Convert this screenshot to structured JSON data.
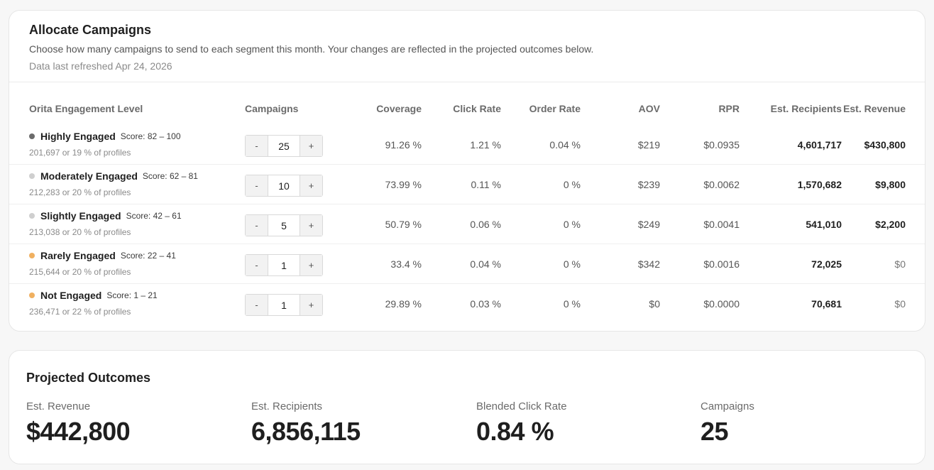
{
  "allocate": {
    "title": "Allocate Campaigns",
    "description": "Choose how many campaigns to send to each segment this month. Your changes are reflected in the projected outcomes below.",
    "refreshed": "Data last refreshed Apr 24, 2026",
    "columns": {
      "level": "Orita Engagement Level",
      "campaigns": "Campaigns",
      "coverage": "Coverage",
      "click_rate": "Click Rate",
      "order_rate": "Order Rate",
      "aov": "AOV",
      "rpr": "RPR",
      "recipients": "Est. Recipients",
      "revenue": "Est. Revenue"
    },
    "rows": [
      {
        "name": "Highly Engaged",
        "score": "Score: 82 – 100",
        "profiles": "201,697 or 19 % of profiles",
        "dot_color": "#6b6b6b",
        "campaigns": "25",
        "coverage": "91.26 %",
        "click_rate": "1.21 %",
        "order_rate": "0.04 %",
        "aov": "$219",
        "rpr": "$0.0935",
        "recipients": "4,601,717",
        "revenue": "$430,800"
      },
      {
        "name": "Moderately Engaged",
        "score": "Score: 62 – 81",
        "profiles": "212,283 or 20 % of profiles",
        "dot_color": "#cfcfcf",
        "campaigns": "10",
        "coverage": "73.99 %",
        "click_rate": "0.11 %",
        "order_rate": "0 %",
        "aov": "$239",
        "rpr": "$0.0062",
        "recipients": "1,570,682",
        "revenue": "$9,800"
      },
      {
        "name": "Slightly Engaged",
        "score": "Score: 42 – 61",
        "profiles": "213,038 or 20 % of profiles",
        "dot_color": "#cfcfcf",
        "campaigns": "5",
        "coverage": "50.79 %",
        "click_rate": "0.06 %",
        "order_rate": "0 %",
        "aov": "$249",
        "rpr": "$0.0041",
        "recipients": "541,010",
        "revenue": "$2,200"
      },
      {
        "name": "Rarely Engaged",
        "score": "Score: 22 – 41",
        "profiles": "215,644 or 20 % of profiles",
        "dot_color": "#f0b060",
        "campaigns": "1",
        "coverage": "33.4 %",
        "click_rate": "0.04 %",
        "order_rate": "0 %",
        "aov": "$342",
        "rpr": "$0.0016",
        "recipients": "72,025",
        "revenue": "$0"
      },
      {
        "name": "Not Engaged",
        "score": "Score: 1 – 21",
        "profiles": "236,471 or 22 % of profiles",
        "dot_color": "#f0b060",
        "campaigns": "1",
        "coverage": "29.89 %",
        "click_rate": "0.03 %",
        "order_rate": "0 %",
        "aov": "$0",
        "rpr": "$0.0000",
        "recipients": "70,681",
        "revenue": "$0"
      }
    ],
    "stepper": {
      "minus": "-",
      "plus": "+"
    }
  },
  "outcomes": {
    "title": "Projected Outcomes",
    "metrics": [
      {
        "label": "Est. Revenue",
        "value": "$442,800"
      },
      {
        "label": "Est. Recipients",
        "value": "6,856,115"
      },
      {
        "label": "Blended Click Rate",
        "value": "0.84 %"
      },
      {
        "label": "Campaigns",
        "value": "25"
      }
    ]
  }
}
